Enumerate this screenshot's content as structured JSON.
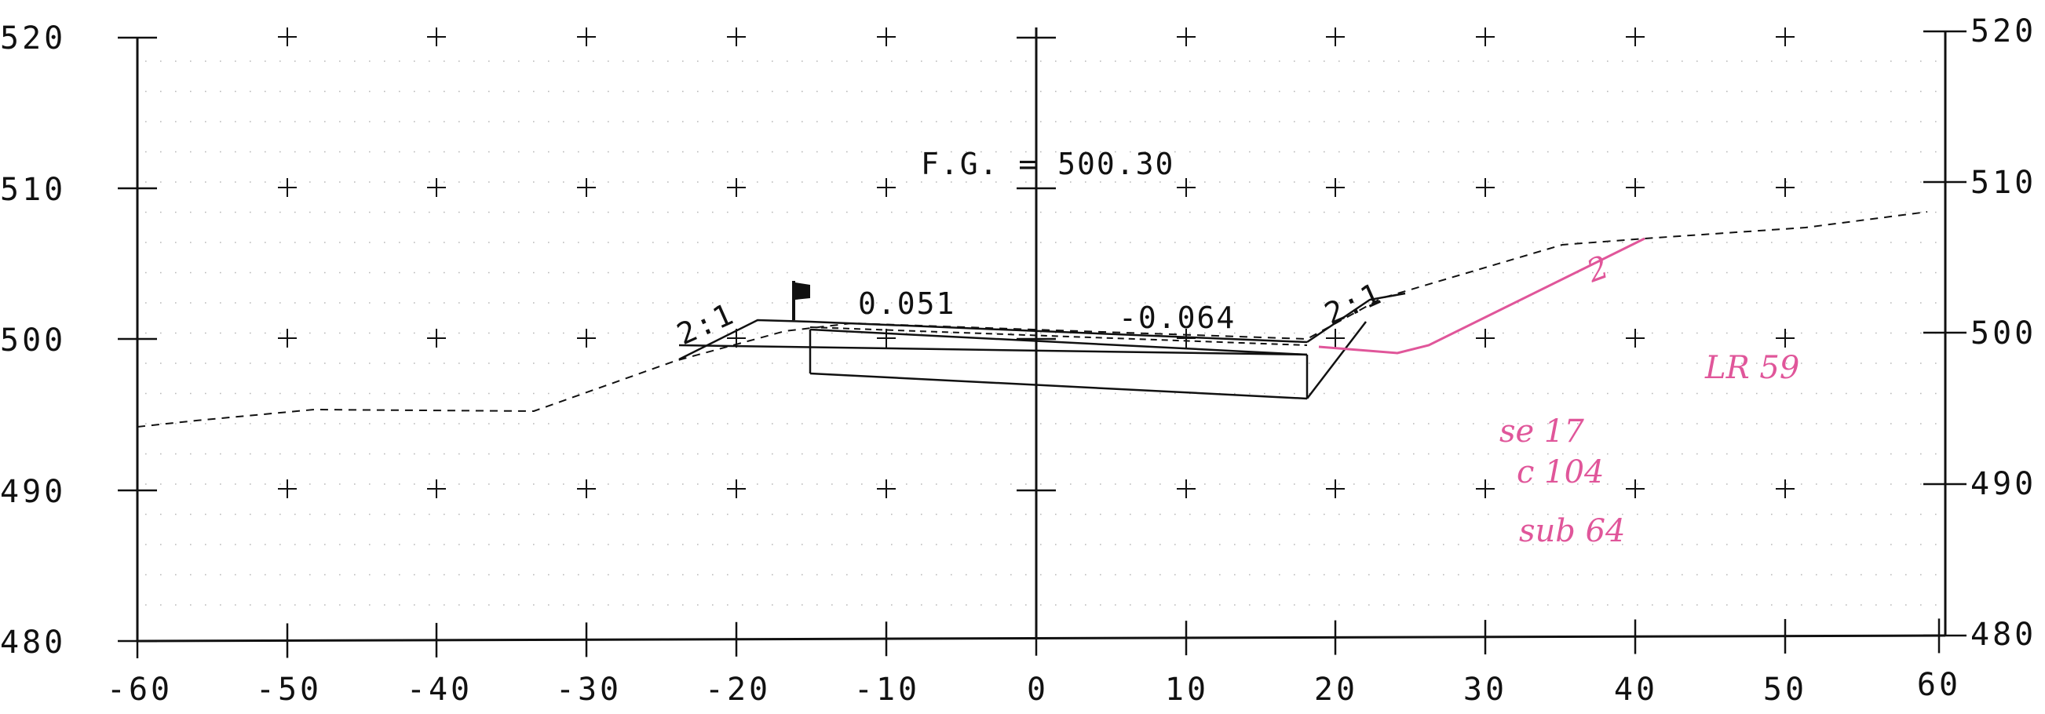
{
  "drawing": {
    "type": "road cross-section",
    "finished_grade_label": "F.G. = 500.30",
    "slope_left_label": "2:1",
    "slope_right_label": "2:1",
    "cross_slope_left_label": "0.051",
    "cross_slope_right_label": "-0.064"
  },
  "axes": {
    "x_ticks": [
      "-60",
      "-50",
      "-40",
      "-30",
      "-20",
      "-10",
      "0",
      "10",
      "20",
      "30",
      "40",
      "50",
      "60"
    ],
    "y_ticks_left": [
      "520",
      "510",
      "500",
      "490",
      "480"
    ],
    "y_ticks_right": [
      "520",
      "510",
      "500",
      "490",
      "480"
    ]
  },
  "handwritten_notes": {
    "mark": "2",
    "n1": "LR 59",
    "n2": "se 17",
    "n3": "c 104",
    "n4": "sub 64"
  },
  "colors": {
    "ink": "#111111",
    "markup": "#e0569a",
    "dot_grid": "#b8b8b8"
  }
}
